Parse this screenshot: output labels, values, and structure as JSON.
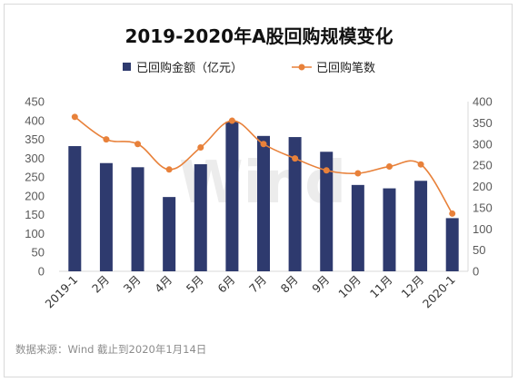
{
  "source_note": "数据来源：Wind   截止到2020年1月14日",
  "watermark": "Wind",
  "chart_data": {
    "type": "bar",
    "title": "2019-2020年A股回购规模变化",
    "categories": [
      "2019-1",
      "2月",
      "3月",
      "4月",
      "5月",
      "6月",
      "7月",
      "8月",
      "9月",
      "10月",
      "11月",
      "12月",
      "2020-1"
    ],
    "series": [
      {
        "name": "已回购金额（亿元）",
        "type": "bar",
        "axis": "left",
        "color": "#2e3a6e",
        "values": [
          332,
          287,
          276,
          197,
          284,
          397,
          359,
          356,
          317,
          229,
          220,
          240,
          141
        ]
      },
      {
        "name": "已回购笔数",
        "type": "line",
        "axis": "right",
        "color": "#e8813a",
        "values": [
          364,
          311,
          300,
          240,
          292,
          355,
          300,
          266,
          238,
          231,
          247,
          252,
          136
        ]
      }
    ],
    "y_left": {
      "ylim": [
        0,
        450
      ],
      "ticks": [
        "0",
        "50",
        "100",
        "150",
        "200",
        "250",
        "300",
        "350",
        "400",
        "450"
      ]
    },
    "y_right": {
      "ylim": [
        0,
        400
      ],
      "ticks": [
        "0",
        "50",
        "100",
        "150",
        "200",
        "250",
        "300",
        "350",
        "400"
      ]
    },
    "legend": "top",
    "grid": false
  }
}
